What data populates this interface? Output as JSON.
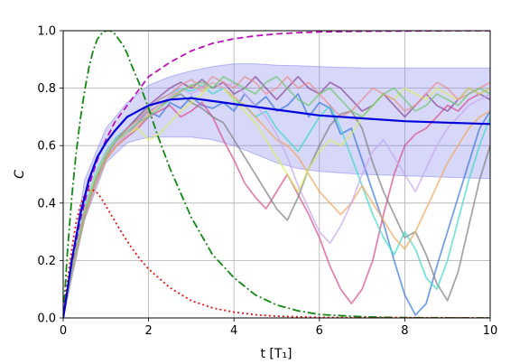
{
  "chart_data": {
    "type": "line",
    "title": "",
    "xlabel": "t [T₁]",
    "ylabel": "C",
    "xlim": [
      0,
      10
    ],
    "ylim": [
      0,
      1
    ],
    "xticks": [
      0,
      2,
      4,
      6,
      8,
      10
    ],
    "xtick_labels": [
      "0",
      "2",
      "4",
      "6",
      "8",
      "10"
    ],
    "yticks": [
      0,
      0.2,
      0.4,
      0.6,
      0.8,
      1.0
    ],
    "ytick_labels": [
      "0.0",
      "0.2",
      "0.4",
      "0.6",
      "0.8",
      "1.0"
    ],
    "grid": true,
    "colors": {
      "mean": "#0000dd",
      "band": "#7b7bf0",
      "green": "#118811",
      "magenta": "#bb11bb",
      "red": "#ee1111"
    },
    "series": [
      {
        "style": "dashdot",
        "color": "#118811",
        "x": [
          0,
          0.1,
          0.2,
          0.3,
          0.4,
          0.5,
          0.6,
          0.7,
          0.8,
          0.9,
          1.0,
          1.1,
          1.2,
          1.3,
          1.4,
          1.5,
          1.6,
          1.8,
          2.0,
          2.2,
          2.5,
          3.0,
          3.5,
          4.0,
          4.5,
          5.0,
          5.5,
          6.0,
          7.0,
          8.0,
          10.0
        ],
        "y": [
          0,
          0.23,
          0.42,
          0.57,
          0.69,
          0.79,
          0.87,
          0.93,
          0.97,
          0.99,
          1.0,
          1.0,
          0.99,
          0.97,
          0.95,
          0.92,
          0.88,
          0.81,
          0.73,
          0.64,
          0.52,
          0.35,
          0.22,
          0.14,
          0.08,
          0.045,
          0.025,
          0.012,
          0.004,
          0.001,
          0.0
        ]
      },
      {
        "style": "dashed",
        "color": "#bb11bb",
        "x": [
          0,
          0.2,
          0.4,
          0.6,
          0.8,
          1.0,
          1.2,
          1.5,
          2.0,
          2.5,
          3.0,
          3.5,
          4.0,
          4.5,
          5.0,
          5.5,
          6.0,
          7.0,
          8.0,
          9.0,
          10.0
        ],
        "y": [
          0,
          0.19,
          0.34,
          0.46,
          0.55,
          0.62,
          0.68,
          0.74,
          0.84,
          0.89,
          0.93,
          0.956,
          0.972,
          0.982,
          0.989,
          0.993,
          0.996,
          0.998,
          0.999,
          1.0,
          1.0
        ]
      },
      {
        "style": "dotted",
        "color": "#ee1111",
        "x": [
          0,
          0.1,
          0.2,
          0.3,
          0.4,
          0.5,
          0.6,
          0.7,
          0.8,
          0.9,
          1.0,
          1.2,
          1.4,
          1.6,
          1.8,
          2.0,
          2.5,
          3.0,
          3.5,
          4.0,
          4.5,
          5.0,
          6.0,
          7.0,
          10.0
        ],
        "y": [
          0,
          0.13,
          0.24,
          0.33,
          0.39,
          0.43,
          0.445,
          0.445,
          0.435,
          0.415,
          0.39,
          0.34,
          0.29,
          0.245,
          0.205,
          0.17,
          0.105,
          0.06,
          0.035,
          0.02,
          0.011,
          0.006,
          0.002,
          0.001,
          0.0
        ]
      },
      {
        "style": "solid",
        "color": "#0000dd",
        "x": [
          0,
          0.2,
          0.4,
          0.6,
          0.8,
          1.0,
          1.2,
          1.5,
          2.0,
          2.5,
          3.0,
          3.5,
          4.0,
          4.5,
          5.0,
          5.5,
          6.0,
          7.0,
          8.0,
          9.0,
          10.0
        ],
        "y": [
          0,
          0.2,
          0.36,
          0.48,
          0.56,
          0.61,
          0.65,
          0.7,
          0.74,
          0.76,
          0.765,
          0.755,
          0.745,
          0.735,
          0.725,
          0.715,
          0.705,
          0.695,
          0.685,
          0.68,
          0.675
        ]
      }
    ],
    "band": {
      "x": [
        0,
        0.5,
        1.0,
        1.5,
        2.0,
        2.5,
        3.0,
        3.5,
        4.0,
        4.5,
        5.0,
        5.5,
        6.0,
        7.0,
        8.0,
        9.0,
        10.0
      ],
      "upper": [
        0,
        0.48,
        0.66,
        0.75,
        0.81,
        0.84,
        0.86,
        0.875,
        0.885,
        0.885,
        0.88,
        0.878,
        0.875,
        0.87,
        0.87,
        0.87,
        0.87
      ],
      "lower": [
        0,
        0.34,
        0.54,
        0.61,
        0.63,
        0.63,
        0.63,
        0.62,
        0.6,
        0.57,
        0.54,
        0.52,
        0.51,
        0.5,
        0.495,
        0.49,
        0.485
      ]
    },
    "trajectories": [
      {
        "color": "#3a78e0",
        "y": [
          0,
          0.2,
          0.36,
          0.47,
          0.56,
          0.62,
          0.64,
          0.68,
          0.72,
          0.7,
          0.75,
          0.73,
          0.77,
          0.74,
          0.73,
          0.75,
          0.72,
          0.78,
          0.74,
          0.77,
          0.72,
          0.74,
          0.78,
          0.7,
          0.75,
          0.73,
          0.64,
          0.66,
          0.55,
          0.44,
          0.33,
          0.2,
          0.08,
          0.01,
          0.05,
          0.18,
          0.3,
          0.42,
          0.54,
          0.66,
          0.72
        ]
      },
      {
        "color": "#d9508a",
        "y": [
          0,
          0.19,
          0.35,
          0.46,
          0.55,
          0.6,
          0.63,
          0.66,
          0.7,
          0.72,
          0.74,
          0.7,
          0.72,
          0.75,
          0.7,
          0.62,
          0.55,
          0.47,
          0.42,
          0.38,
          0.44,
          0.5,
          0.43,
          0.36,
          0.28,
          0.18,
          0.1,
          0.05,
          0.1,
          0.2,
          0.36,
          0.5,
          0.6,
          0.64,
          0.66,
          0.7,
          0.74,
          0.72,
          0.76,
          0.78,
          0.8
        ]
      },
      {
        "color": "#808080",
        "y": [
          0,
          0.2,
          0.37,
          0.48,
          0.56,
          0.62,
          0.66,
          0.69,
          0.72,
          0.74,
          0.76,
          0.78,
          0.75,
          0.73,
          0.7,
          0.68,
          0.62,
          0.56,
          0.5,
          0.44,
          0.38,
          0.34,
          0.42,
          0.52,
          0.6,
          0.67,
          0.71,
          0.72,
          0.66,
          0.54,
          0.44,
          0.36,
          0.28,
          0.3,
          0.22,
          0.12,
          0.06,
          0.16,
          0.32,
          0.48,
          0.6
        ]
      },
      {
        "color": "#40d8c8",
        "y": [
          0,
          0.21,
          0.38,
          0.5,
          0.58,
          0.63,
          0.66,
          0.7,
          0.73,
          0.76,
          0.78,
          0.8,
          0.79,
          0.81,
          0.78,
          0.8,
          0.76,
          0.74,
          0.7,
          0.72,
          0.66,
          0.62,
          0.58,
          0.64,
          0.7,
          0.74,
          0.66,
          0.56,
          0.46,
          0.36,
          0.28,
          0.22,
          0.3,
          0.24,
          0.14,
          0.1,
          0.2,
          0.34,
          0.48,
          0.6,
          0.7
        ]
      },
      {
        "color": "#8a4a9a",
        "y": [
          0,
          0.2,
          0.36,
          0.48,
          0.56,
          0.62,
          0.66,
          0.7,
          0.74,
          0.77,
          0.8,
          0.82,
          0.8,
          0.83,
          0.8,
          0.82,
          0.78,
          0.8,
          0.84,
          0.8,
          0.76,
          0.8,
          0.84,
          0.8,
          0.78,
          0.82,
          0.8,
          0.76,
          0.72,
          0.74,
          0.78,
          0.74,
          0.7,
          0.74,
          0.78,
          0.74,
          0.72,
          0.76,
          0.8,
          0.78,
          0.76
        ]
      },
      {
        "color": "#f0a860",
        "y": [
          0,
          0.19,
          0.35,
          0.46,
          0.55,
          0.6,
          0.64,
          0.67,
          0.71,
          0.74,
          0.77,
          0.79,
          0.81,
          0.79,
          0.82,
          0.8,
          0.77,
          0.74,
          0.7,
          0.66,
          0.62,
          0.6,
          0.56,
          0.5,
          0.44,
          0.4,
          0.36,
          0.4,
          0.46,
          0.4,
          0.34,
          0.28,
          0.24,
          0.3,
          0.38,
          0.46,
          0.54,
          0.6,
          0.66,
          0.7,
          0.72
        ]
      },
      {
        "color": "#d8f060",
        "y": [
          0,
          0.21,
          0.37,
          0.49,
          0.57,
          0.62,
          0.64,
          0.66,
          0.62,
          0.64,
          0.68,
          0.72,
          0.75,
          0.78,
          0.82,
          0.8,
          0.76,
          0.72,
          0.68,
          0.62,
          0.56,
          0.5,
          0.44,
          0.52,
          0.58,
          0.62,
          0.6,
          0.64,
          0.7,
          0.74,
          0.78,
          0.76,
          0.8,
          0.78,
          0.76,
          0.8,
          0.78,
          0.76,
          0.8,
          0.78,
          0.8
        ]
      },
      {
        "color": "#c8a8f0",
        "y": [
          0,
          0.2,
          0.36,
          0.47,
          0.56,
          0.61,
          0.64,
          0.68,
          0.72,
          0.74,
          0.77,
          0.8,
          0.78,
          0.8,
          0.82,
          0.8,
          0.82,
          0.78,
          0.74,
          0.7,
          0.64,
          0.56,
          0.46,
          0.38,
          0.3,
          0.26,
          0.32,
          0.4,
          0.5,
          0.58,
          0.62,
          0.56,
          0.5,
          0.44,
          0.52,
          0.6,
          0.66,
          0.7,
          0.74,
          0.76,
          0.78
        ]
      },
      {
        "color": "#e89090",
        "y": [
          0,
          0.2,
          0.37,
          0.48,
          0.57,
          0.62,
          0.66,
          0.69,
          0.73,
          0.76,
          0.78,
          0.81,
          0.83,
          0.8,
          0.84,
          0.82,
          0.8,
          0.84,
          0.82,
          0.78,
          0.8,
          0.84,
          0.8,
          0.82,
          0.78,
          0.74,
          0.7,
          0.72,
          0.76,
          0.8,
          0.78,
          0.76,
          0.72,
          0.74,
          0.78,
          0.82,
          0.8,
          0.76,
          0.78,
          0.8,
          0.82
        ]
      },
      {
        "color": "#70c870",
        "y": [
          0,
          0.2,
          0.36,
          0.48,
          0.56,
          0.62,
          0.65,
          0.68,
          0.7,
          0.73,
          0.76,
          0.79,
          0.81,
          0.82,
          0.8,
          0.84,
          0.82,
          0.8,
          0.78,
          0.82,
          0.84,
          0.8,
          0.76,
          0.74,
          0.78,
          0.8,
          0.76,
          0.72,
          0.7,
          0.74,
          0.78,
          0.8,
          0.76,
          0.72,
          0.74,
          0.78,
          0.76,
          0.74,
          0.78,
          0.8,
          0.78
        ]
      }
    ]
  }
}
